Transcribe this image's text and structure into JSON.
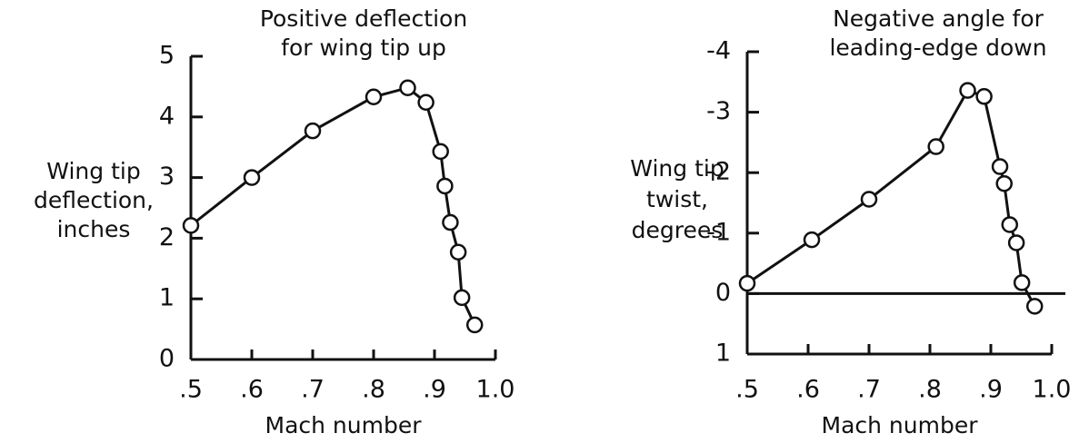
{
  "chart_data": [
    {
      "type": "line",
      "title": [
        "Positive deflection",
        "for wing tip up"
      ],
      "xlabel": "Mach number",
      "ylabel": [
        "Wing tip",
        "deflection,",
        "inches"
      ],
      "x": [
        0.5,
        0.6,
        0.7,
        0.8,
        0.856,
        0.886,
        0.91,
        0.917,
        0.926,
        0.939,
        0.945,
        0.966
      ],
      "series": [
        {
          "color": "#111111",
          "values": [
            2.21,
            3.0,
            3.77,
            4.33,
            4.48,
            4.24,
            3.43,
            2.86,
            2.26,
            1.77,
            1.02,
            0.57
          ]
        }
      ],
      "xlim": [
        0.5,
        1.0
      ],
      "xticks": [
        {
          "value": 0.5,
          "label": ".5"
        },
        {
          "value": 0.6,
          "label": ".6"
        },
        {
          "value": 0.7,
          "label": ".7"
        },
        {
          "value": 0.8,
          "label": ".8"
        },
        {
          "value": 0.9,
          "label": ".9"
        },
        {
          "value": 1.0,
          "label": "1.0"
        }
      ],
      "ylim": [
        0,
        5
      ],
      "yticks": [
        0,
        1,
        2,
        3,
        4,
        5
      ],
      "zero_line": false
    },
    {
      "type": "line",
      "title": [
        "Negative angle for",
        "leading-edge down"
      ],
      "xlabel": "Mach number",
      "ylabel": [
        "Wing tip",
        "twist,",
        "degrees"
      ],
      "x": [
        0.5,
        0.606,
        0.7,
        0.81,
        0.862,
        0.889,
        0.915,
        0.922,
        0.931,
        0.942,
        0.951,
        0.972
      ],
      "series": [
        {
          "color": "#111111",
          "values": [
            -0.17,
            -0.89,
            -1.56,
            -2.43,
            -3.36,
            -3.26,
            -2.1,
            -1.82,
            -1.14,
            -0.84,
            -0.18,
            0.21
          ]
        }
      ],
      "xlim": [
        0.5,
        1.0
      ],
      "xticks": [
        {
          "value": 0.5,
          "label": ".5"
        },
        {
          "value": 0.6,
          "label": ".6"
        },
        {
          "value": 0.7,
          "label": ".7"
        },
        {
          "value": 0.8,
          "label": ".8"
        },
        {
          "value": 0.9,
          "label": ".9"
        },
        {
          "value": 1.0,
          "label": "1.0"
        }
      ],
      "ylim": [
        1,
        -4
      ],
      "yticks": [
        -4,
        -3,
        -2,
        -1,
        0,
        1
      ],
      "zero_line": true
    }
  ]
}
